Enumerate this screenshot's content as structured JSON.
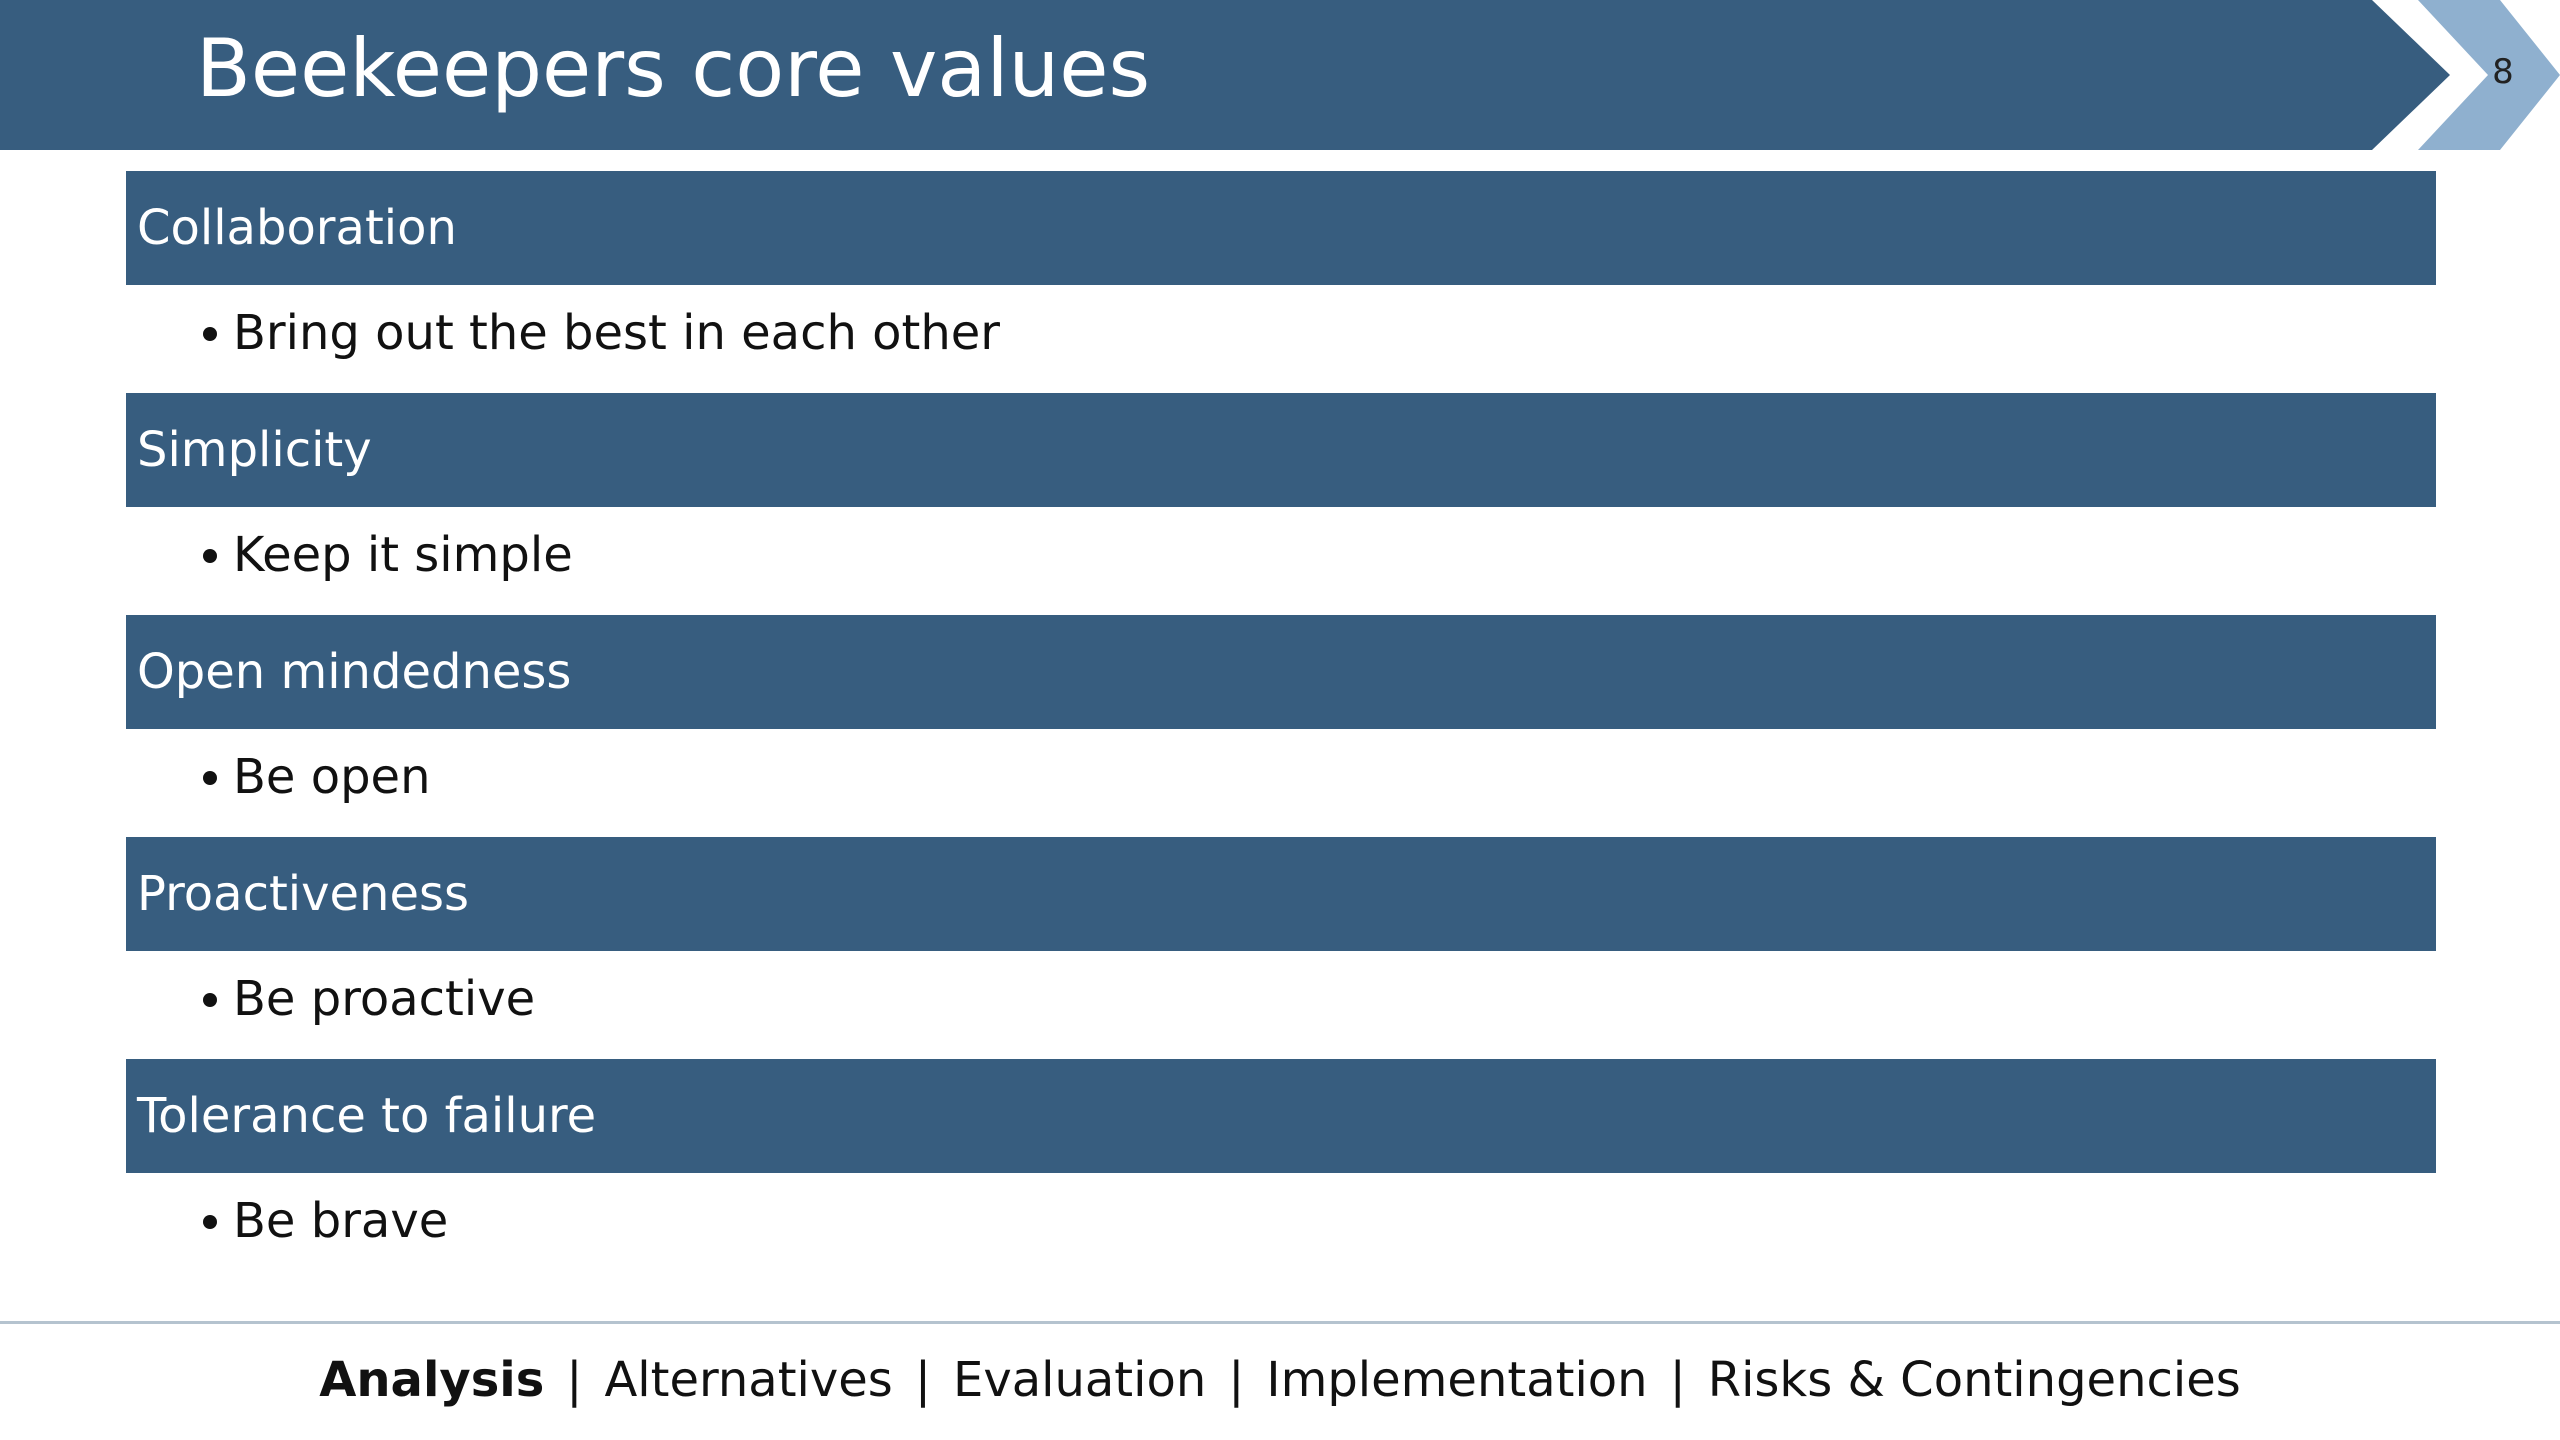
{
  "header": {
    "title": "Beekeepers core values",
    "page_number": "8"
  },
  "sections": [
    {
      "heading": "Collaboration",
      "bullets": [
        "Bring out the best in each other"
      ]
    },
    {
      "heading": "Simplicity",
      "bullets": [
        "Keep it simple"
      ]
    },
    {
      "heading": "Open mindedness",
      "bullets": [
        "Be open"
      ]
    },
    {
      "heading": "Proactiveness",
      "bullets": [
        "Be proactive"
      ]
    },
    {
      "heading": "Tolerance to failure",
      "bullets": [
        "Be brave"
      ]
    }
  ],
  "footer": {
    "items": [
      "Analysis",
      "Alternatives",
      "Evaluation",
      "Implementation",
      "Risks & Contingencies"
    ],
    "separator": "|",
    "active": 0
  }
}
